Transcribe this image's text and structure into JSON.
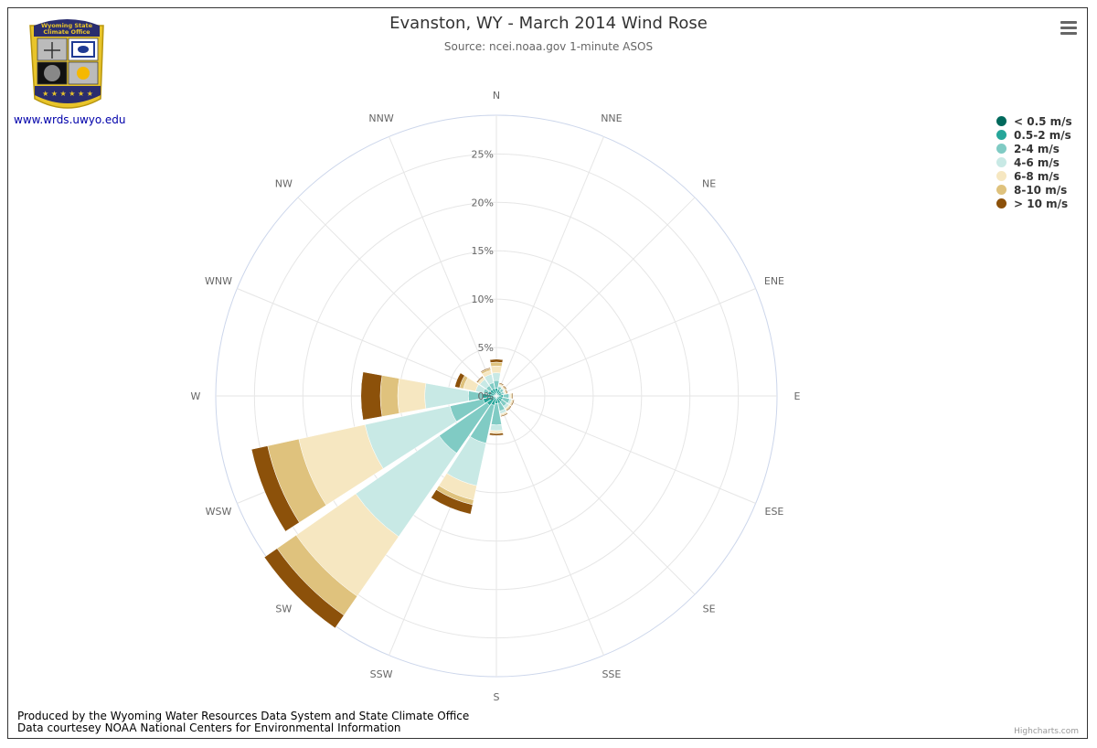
{
  "title": "Evanston, WY - March 2014 Wind Rose",
  "subtitle": "Source: ncei.noaa.gov 1-minute ASOS",
  "logo": {
    "text_line1": "Wyoming State",
    "text_line2": "Climate Office",
    "link": "www.wrds.uwyo.edu"
  },
  "footer": {
    "line1": "Produced by the Wyoming Water Resources Data System and State Climate Office",
    "line2": "Data courtesey NOAA National Centers for Environmental Information"
  },
  "credits": "Highcharts.com",
  "chart_data": {
    "type": "windrose",
    "categories": [
      "N",
      "NNE",
      "NE",
      "ENE",
      "E",
      "ESE",
      "SE",
      "SSE",
      "S",
      "SSW",
      "SW",
      "WSW",
      "W",
      "WNW",
      "NW",
      "NNW"
    ],
    "radial_ticks": [
      "0%",
      "5%",
      "10%",
      "15%",
      "20%",
      "25%"
    ],
    "rmax": 29,
    "legend_position": "top-right",
    "series": [
      {
        "name": "< 0.5 m/s",
        "color": "#00695C",
        "values": [
          0.2,
          0.2,
          0.2,
          0.2,
          0.2,
          0.2,
          0.2,
          0.2,
          0.2,
          0.2,
          0.2,
          0.2,
          0.2,
          0.2,
          0.2,
          0.2
        ]
      },
      {
        "name": "0.5-2 m/s",
        "color": "#26A69A",
        "values": [
          0.6,
          0.5,
          0.4,
          0.4,
          0.5,
          0.5,
          0.5,
          0.6,
          0.6,
          0.8,
          1.0,
          1.2,
          1.2,
          0.7,
          0.6,
          0.6
        ]
      },
      {
        "name": "2-4 m/s",
        "color": "#80CBC4",
        "values": [
          0.8,
          0.3,
          0.3,
          0.2,
          0.6,
          0.7,
          0.6,
          0.8,
          2.2,
          4.0,
          6.0,
          3.5,
          1.5,
          0.5,
          0.5,
          0.6
        ]
      },
      {
        "name": "4-6 m/s",
        "color": "#C8E9E5",
        "values": [
          0.8,
          0.1,
          0.1,
          0.1,
          0.1,
          0.2,
          0.3,
          0.3,
          0.6,
          4.5,
          10.5,
          9.0,
          4.5,
          0.8,
          0.8,
          0.9
        ]
      },
      {
        "name": "6-8 m/s",
        "color": "#F6E7C1",
        "values": [
          0.7,
          0.1,
          0.1,
          0.1,
          0.1,
          0.1,
          0.1,
          0.1,
          0.2,
          1.5,
          7.5,
          7.0,
          2.8,
          1.3,
          0.2,
          0.4
        ]
      },
      {
        "name": "8-10 m/s",
        "color": "#DFC27D",
        "values": [
          0.4,
          0.1,
          0.1,
          0.1,
          0.1,
          0.1,
          0.1,
          0.1,
          0.1,
          0.5,
          2.4,
          3.3,
          1.8,
          0.4,
          0.1,
          0.2
        ]
      },
      {
        "name": "> 10 m/s",
        "color": "#8C510A",
        "values": [
          0.3,
          0.1,
          0.1,
          0.1,
          0.1,
          0.1,
          0.1,
          0.1,
          0.2,
          1.0,
          1.6,
          1.7,
          2.0,
          0.5,
          0.1,
          0.1
        ]
      }
    ]
  }
}
